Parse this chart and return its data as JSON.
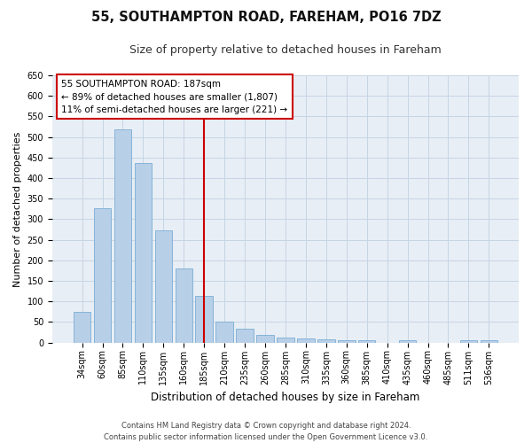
{
  "title": "55, SOUTHAMPTON ROAD, FAREHAM, PO16 7DZ",
  "subtitle": "Size of property relative to detached houses in Fareham",
  "xlabel": "Distribution of detached houses by size in Fareham",
  "ylabel": "Number of detached properties",
  "categories": [
    "34sqm",
    "60sqm",
    "85sqm",
    "110sqm",
    "135sqm",
    "160sqm",
    "185sqm",
    "210sqm",
    "235sqm",
    "260sqm",
    "285sqm",
    "310sqm",
    "335sqm",
    "360sqm",
    "385sqm",
    "410sqm",
    "435sqm",
    "460sqm",
    "485sqm",
    "511sqm",
    "536sqm"
  ],
  "values": [
    75,
    327,
    518,
    437,
    272,
    181,
    113,
    50,
    34,
    18,
    13,
    10,
    7,
    5,
    5,
    0,
    5,
    0,
    0,
    5,
    5
  ],
  "bar_color": "#b8cfe8",
  "bar_edgecolor": "#7aadd4",
  "vline_color": "#cc0000",
  "box_edgecolor": "#cc0000",
  "background_color": "#ffffff",
  "plot_bg_color": "#e8eef5",
  "grid_color": "#c5d5e5",
  "annotation_line1": "55 SOUTHAMPTON ROAD: 187sqm",
  "annotation_line2": "← 89% of detached houses are smaller (1,807)",
  "annotation_line3": "11% of semi-detached houses are larger (221) →",
  "footer": "Contains HM Land Registry data © Crown copyright and database right 2024.\nContains public sector information licensed under the Open Government Licence v3.0.",
  "ylim": [
    0,
    650
  ],
  "yticks": [
    0,
    50,
    100,
    150,
    200,
    250,
    300,
    350,
    400,
    450,
    500,
    550,
    600,
    650
  ],
  "title_fontsize": 10.5,
  "subtitle_fontsize": 9,
  "xlabel_fontsize": 8.5,
  "ylabel_fontsize": 8,
  "tick_fontsize": 7,
  "annotation_fontsize": 7.5,
  "footer_fontsize": 6
}
